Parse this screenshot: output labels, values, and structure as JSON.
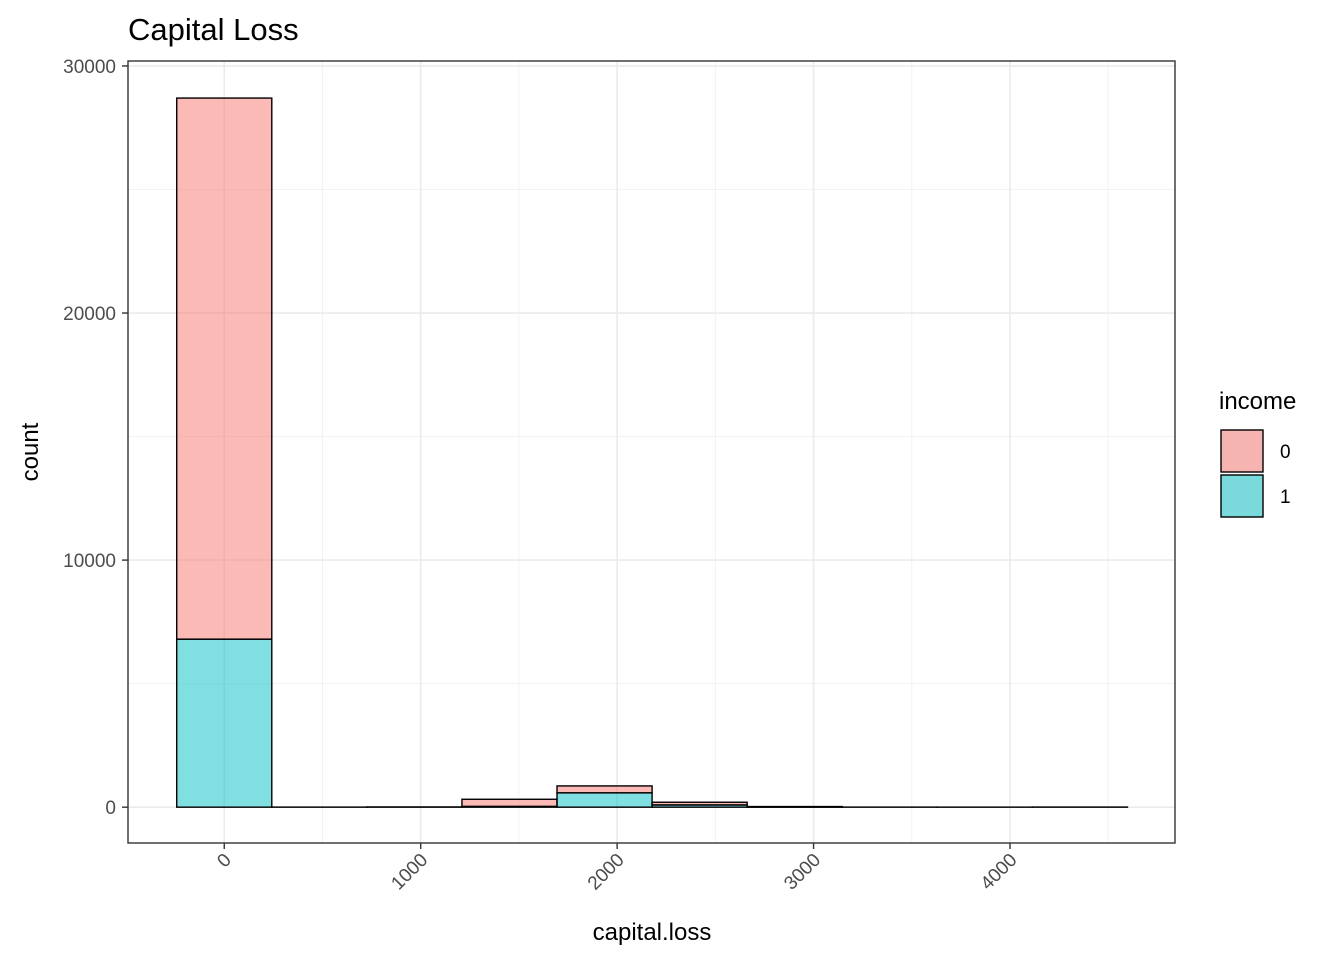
{
  "chart_data": {
    "type": "bar",
    "subtype": "stacked-histogram",
    "title": "Capital Loss",
    "xlabel": "capital.loss",
    "ylabel": "count",
    "xlim": [
      -490,
      4840
    ],
    "ylim": [
      -1450,
      30200
    ],
    "x_ticks": [
      0,
      1000,
      2000,
      3000,
      4000
    ],
    "x_tick_labels": [
      "0",
      "1000",
      "2000",
      "3000",
      "4000"
    ],
    "x_tick_label_rotation": "45deg",
    "y_ticks": [
      0,
      10000,
      20000,
      30000
    ],
    "y_tick_labels": [
      "0",
      "10000",
      "20000",
      "30000"
    ],
    "grid": true,
    "legend": {
      "title": "income",
      "position": "right"
    },
    "bins": [
      [
        -242,
        242
      ],
      [
        242,
        726
      ],
      [
        726,
        1210
      ],
      [
        1210,
        1694
      ],
      [
        1694,
        2178
      ],
      [
        2178,
        2662
      ],
      [
        2662,
        3146
      ],
      [
        3146,
        3630
      ],
      [
        3630,
        4114
      ],
      [
        4114,
        4598
      ]
    ],
    "series": [
      {
        "name": "1",
        "color": "#00BFC4",
        "values": [
          6800,
          0,
          0,
          30,
          580,
          90,
          5,
          0,
          0,
          5
        ]
      },
      {
        "name": "0",
        "color": "#F8766D",
        "values": [
          21900,
          3,
          10,
          290,
          280,
          110,
          20,
          3,
          2,
          0
        ]
      }
    ]
  }
}
